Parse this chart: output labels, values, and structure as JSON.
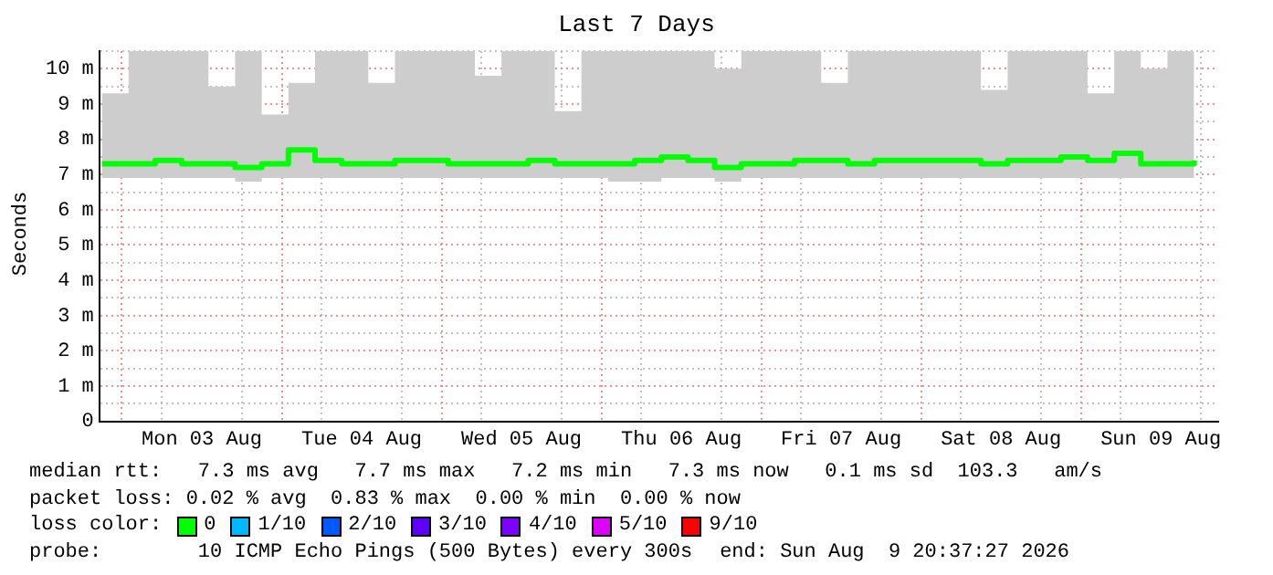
{
  "chart_data": {
    "type": "step",
    "title": "Last 7 Days",
    "ylabel": "Seconds",
    "x": [
      "2026-08-02T21:00",
      "2026-08-03T01:00",
      "2026-08-03T05:00",
      "2026-08-03T09:00",
      "2026-08-03T13:00",
      "2026-08-03T17:00",
      "2026-08-03T21:00",
      "2026-08-04T01:00",
      "2026-08-04T05:00",
      "2026-08-04T09:00",
      "2026-08-04T13:00",
      "2026-08-04T17:00",
      "2026-08-04T21:00",
      "2026-08-05T01:00",
      "2026-08-05T05:00",
      "2026-08-05T09:00",
      "2026-08-05T13:00",
      "2026-08-05T17:00",
      "2026-08-05T21:00",
      "2026-08-06T01:00",
      "2026-08-06T05:00",
      "2026-08-06T09:00",
      "2026-08-06T13:00",
      "2026-08-06T17:00",
      "2026-08-06T21:00",
      "2026-08-07T01:00",
      "2026-08-07T05:00",
      "2026-08-07T09:00",
      "2026-08-07T13:00",
      "2026-08-07T17:00",
      "2026-08-07T21:00",
      "2026-08-08T01:00",
      "2026-08-08T05:00",
      "2026-08-08T09:00",
      "2026-08-08T13:00",
      "2026-08-08T17:00",
      "2026-08-08T21:00",
      "2026-08-09T01:00",
      "2026-08-09T05:00",
      "2026-08-09T09:00",
      "2026-08-09T13:00",
      "2026-08-09T17:00"
    ],
    "series": [
      {
        "color": "#00ff00",
        "values": [
          7.3,
          7.3,
          7.4,
          7.3,
          7.3,
          7.2,
          7.3,
          7.7,
          7.4,
          7.3,
          7.3,
          7.4,
          7.4,
          7.3,
          7.3,
          7.3,
          7.4,
          7.3,
          7.3,
          7.3,
          7.4,
          7.5,
          7.4,
          7.2,
          7.3,
          7.3,
          7.4,
          7.4,
          7.3,
          7.4,
          7.4,
          7.4,
          7.4,
          7.3,
          7.4,
          7.4,
          7.5,
          7.4,
          7.6,
          7.3,
          7.3,
          7.4
        ],
        "lower": [
          6.9,
          6.9,
          6.9,
          6.9,
          6.9,
          6.8,
          6.9,
          6.9,
          6.9,
          6.9,
          6.9,
          6.9,
          6.9,
          6.9,
          6.9,
          6.9,
          6.9,
          6.9,
          6.9,
          6.8,
          6.8,
          6.9,
          6.9,
          6.8,
          6.9,
          6.9,
          6.9,
          6.9,
          6.9,
          6.9,
          6.9,
          6.9,
          6.9,
          6.9,
          6.9,
          6.9,
          6.9,
          6.9,
          6.9,
          6.9,
          6.9,
          6.9
        ],
        "upper": [
          9.3,
          10.5,
          10.5,
          10.5,
          9.5,
          10.5,
          8.7,
          9.6,
          10.5,
          10.5,
          9.6,
          10.5,
          10.5,
          10.5,
          9.8,
          10.5,
          10.5,
          8.8,
          10.5,
          10.5,
          10.5,
          10.5,
          10.5,
          10.0,
          10.5,
          10.5,
          10.5,
          9.6,
          10.5,
          10.5,
          10.5,
          10.5,
          10.5,
          9.4,
          10.5,
          10.5,
          10.5,
          9.3,
          10.5,
          10.0,
          10.5,
          10.5
        ]
      }
    ],
    "xlim": [
      "2026-08-02T20:37",
      "2026-08-09T20:37"
    ],
    "xticks": [
      {
        "value": "2026-08-03T00:00",
        "label": null
      },
      {
        "value": "2026-08-03T12:00",
        "label": "Mon 03 Aug"
      },
      {
        "value": "2026-08-04T00:00",
        "label": null
      },
      {
        "value": "2026-08-04T12:00",
        "label": "Tue 04 Aug"
      },
      {
        "value": "2026-08-05T00:00",
        "label": null
      },
      {
        "value": "2026-08-05T12:00",
        "label": "Wed 05 Aug"
      },
      {
        "value": "2026-08-06T00:00",
        "label": null
      },
      {
        "value": "2026-08-06T12:00",
        "label": "Thu 06 Aug"
      },
      {
        "value": "2026-08-07T00:00",
        "label": null
      },
      {
        "value": "2026-08-07T12:00",
        "label": "Fri 07 Aug"
      },
      {
        "value": "2026-08-08T00:00",
        "label": null
      },
      {
        "value": "2026-08-08T12:00",
        "label": "Sat 08 Aug"
      },
      {
        "value": "2026-08-09T00:00",
        "label": null
      },
      {
        "value": "2026-08-09T12:00",
        "label": "Sun 09 Aug"
      }
    ],
    "ylim": [
      0,
      10.5
    ],
    "yticks": [
      {
        "value": 0,
        "label": "0"
      },
      {
        "value": 1,
        "label": "1 m"
      },
      {
        "value": 2,
        "label": "2 m"
      },
      {
        "value": 3,
        "label": "3 m"
      },
      {
        "value": 4,
        "label": "4 m"
      },
      {
        "value": 5,
        "label": "5 m"
      },
      {
        "value": 6,
        "label": "6 m"
      },
      {
        "value": 7,
        "label": "7 m"
      },
      {
        "value": 8,
        "label": "8 m"
      },
      {
        "value": 9,
        "label": "9 m"
      },
      {
        "value": 10,
        "label": "10 m"
      }
    ],
    "grid": true,
    "legend": false,
    "marker": "none",
    "line_style": "solid",
    "annotations": [
      "median rtt:   7.3 ms avg   7.7 ms max   7.2 ms min   7.3 ms now   0.1 ms sd  103.3   am/s",
      "packet loss: 0.02 % avg  0.83 % max  0.00 % min  0.00 % now",
      "loss color:",
      "0",
      "1/10",
      "2/10",
      "3/10",
      "4/10",
      "5/10",
      "9/10",
      "probe:        10 ICMP Echo Pings (500 Bytes) every 300s",
      "end: Sun Aug  9 20:37:27 2026"
    ]
  }
}
